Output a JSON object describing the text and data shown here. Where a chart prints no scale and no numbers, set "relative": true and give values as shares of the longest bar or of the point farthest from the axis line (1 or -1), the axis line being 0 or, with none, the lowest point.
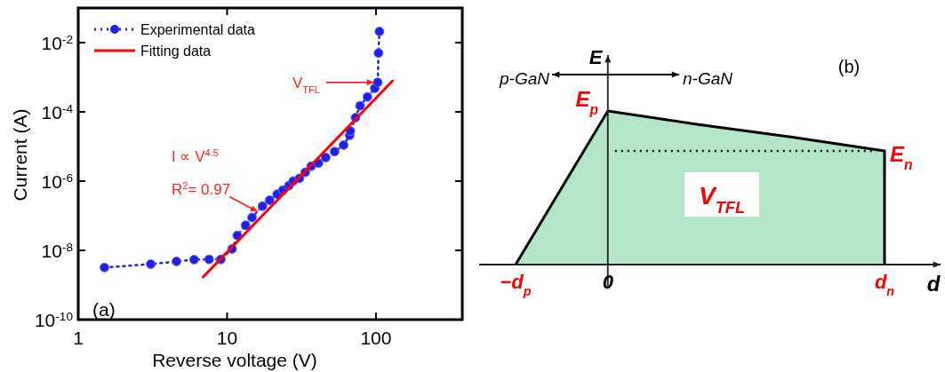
{
  "chart_data": [
    {
      "type": "line",
      "xlabel": "Reverse voltage (V)",
      "ylabel": "Current (A)",
      "log": "xy",
      "xlim": [
        1,
        380
      ],
      "ylim": [
        1e-10,
        0.1
      ],
      "xticks": [
        1,
        10,
        100
      ],
      "yticks": [
        {
          "value": 1e-10,
          "label": "10$^{-10}$"
        },
        {
          "value": 1e-08,
          "label": "10$^{-8}$"
        },
        {
          "value": 1e-06,
          "label": "10$^{-6}$"
        },
        {
          "value": 0.0001,
          "label": "10$^{-4}$"
        },
        {
          "value": 0.01,
          "label": "10$^{-2}$"
        }
      ],
      "grid": false,
      "legend": "top left",
      "series": [
        {
          "name": "Experimental data",
          "color": "#2121e6",
          "marker": "circle",
          "line_style": "dotted",
          "x": [
            1.5,
            3.07,
            4.57,
            6.0,
            7.57,
            9.08,
            10.8,
            11.7,
            13.3,
            14.7,
            17.3,
            19.3,
            21.7,
            23.7,
            26.0,
            27.8,
            30.6,
            33.5,
            36.7,
            41.1,
            46.0,
            52.7,
            60.6,
            66.5,
            67.3,
            72.9,
            78.2,
            87.6,
            98.2,
            102.8,
            104,
            105.5
          ],
          "values": [
            3.2e-09,
            4e-09,
            4.8e-09,
            5.4e-09,
            5.5e-09,
            5.5e-09,
            1.1e-08,
            2.7e-08,
            5.3e-08,
            8.9e-08,
            1.9e-07,
            2.8e-07,
            4.2e-07,
            5.5e-07,
            7.4e-07,
            1e-06,
            1.2e-06,
            1.8e-06,
            2.7e-06,
            3.3e-06,
            4.8e-06,
            7.1e-06,
            1.1e-05,
            2.1e-05,
            2.8e-05,
            6.8e-05,
            0.00015,
            0.00027,
            0.00048,
            0.00071,
            0.005,
            0.021
          ]
        },
        {
          "name": "Fitting data",
          "color": "#ff0000",
          "line_style": "solid",
          "x": [
            6.9,
            129
          ],
          "values": [
            1.7e-09,
            0.00078
          ]
        }
      ],
      "annotations": [
        {
          "text": "V$_{TFL}$",
          "x": 102.8,
          "y": 0.00071
        },
        "I ∝ V$^{4.5}$",
        {
          "text": "R$^{2}$= 0.97",
          "x": 17,
          "y": 1.3e-07
        },
        "(a)"
      ]
    },
    {
      "type": "area",
      "relative": true,
      "categories": [
        "−d$_{p}$",
        "0",
        null,
        null,
        "d$_{n}$"
      ],
      "xlabel": "d",
      "ylabel": "E",
      "series": [
        {
          "color": "#b3e6c9",
          "values": [
            0,
            1,
            0.91,
            0.83,
            0.74
          ]
        }
      ],
      "ref_lines": [
        {
          "axis": "y",
          "value": 0.74,
          "line_style": "dotted",
          "color": "#101010"
        }
      ],
      "annotations": [
        "p-GaN",
        "n-GaN",
        "(b)",
        "E$_{p}$",
        "E$_{n}$",
        "V$_{TFL}$"
      ]
    }
  ]
}
